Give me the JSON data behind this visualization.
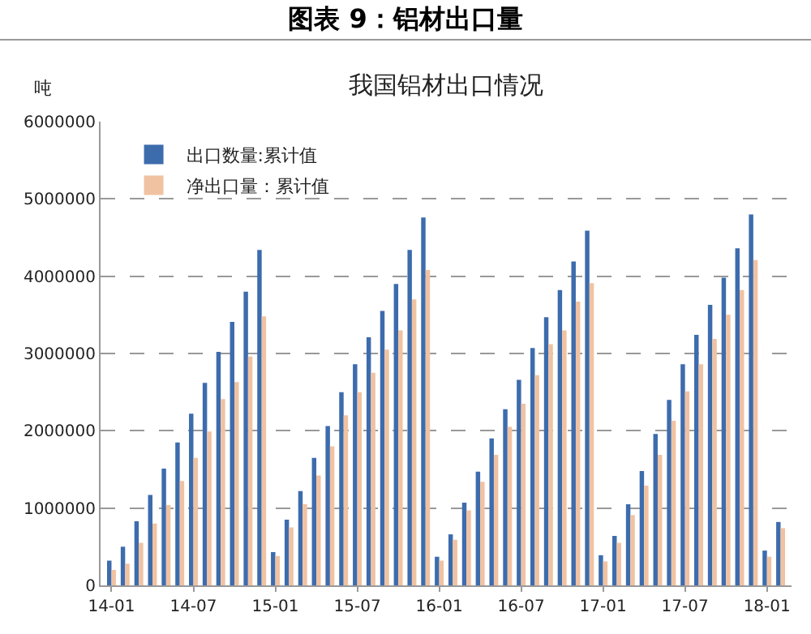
{
  "chart_data": {
    "type": "bar",
    "title": "图表 9：铝材出口量",
    "subtitle": "我国铝材出口情况",
    "ylabel": "吨",
    "categories": [
      "14-01",
      null,
      null,
      null,
      null,
      null,
      "14-07",
      null,
      null,
      null,
      null,
      null,
      "15-01",
      null,
      null,
      null,
      null,
      null,
      "15-07",
      null,
      null,
      null,
      null,
      null,
      "16-01",
      null,
      null,
      null,
      null,
      null,
      "16-07",
      null,
      null,
      null,
      null,
      null,
      "17-01",
      null,
      null,
      null,
      null,
      null,
      "17-07",
      null,
      null,
      null,
      null,
      null,
      "18-01",
      null
    ],
    "series": [
      {
        "name": "出口数量:累计值",
        "color": "#3d6cad",
        "values": [
          320000,
          500000,
          830000,
          1170000,
          1510000,
          1850000,
          2220000,
          2620000,
          3020000,
          3410000,
          3800000,
          4340000,
          430000,
          850000,
          1220000,
          1650000,
          2060000,
          2500000,
          2860000,
          3210000,
          3550000,
          3900000,
          4340000,
          4760000,
          370000,
          660000,
          1070000,
          1470000,
          1900000,
          2280000,
          2660000,
          3070000,
          3470000,
          3820000,
          4190000,
          4590000,
          390000,
          640000,
          1050000,
          1480000,
          1960000,
          2400000,
          2860000,
          3240000,
          3630000,
          3980000,
          4360000,
          4800000,
          450000,
          820000
        ]
      },
      {
        "name": "净出口量：累计值",
        "color": "#f0c2a2",
        "values": [
          200000,
          280000,
          550000,
          800000,
          1040000,
          1350000,
          1650000,
          1990000,
          2410000,
          2630000,
          2960000,
          3480000,
          380000,
          750000,
          1050000,
          1420000,
          1800000,
          2200000,
          2500000,
          2750000,
          3050000,
          3300000,
          3700000,
          4080000,
          320000,
          590000,
          970000,
          1340000,
          1690000,
          2050000,
          2350000,
          2720000,
          3120000,
          3300000,
          3670000,
          3910000,
          310000,
          550000,
          910000,
          1290000,
          1690000,
          2130000,
          2510000,
          2860000,
          3190000,
          3500000,
          3820000,
          4210000,
          370000,
          740000
        ]
      }
    ],
    "ylim": [
      0,
      6000000
    ],
    "yticks": [
      0,
      1000000,
      2000000,
      3000000,
      4000000,
      5000000,
      6000000
    ],
    "grid": "y",
    "line_style": "dashed",
    "legend": "top left"
  }
}
